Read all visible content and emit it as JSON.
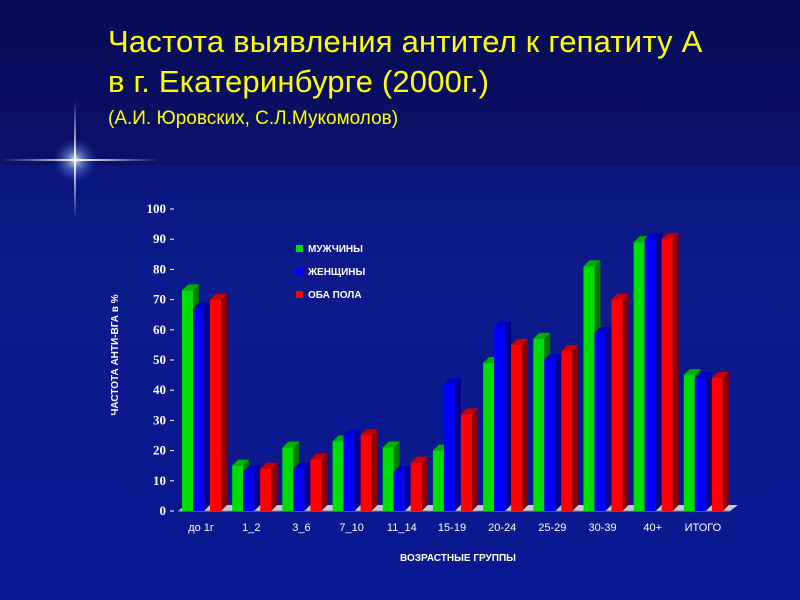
{
  "slide": {
    "title_line1": "Частота выявления антител к гепатиту А",
    "title_line2": "в г. Екатеринбурге (2000г.)",
    "subtitle": "(А.И. Юровских, С.Л.Мукомолов)"
  },
  "colors": {
    "title": "#ffff00",
    "male": "#00dd00",
    "female": "#0000ff",
    "both": "#ff0000"
  },
  "chart_data": {
    "type": "bar",
    "title": "",
    "xlabel": "ВОЗРАСТНЫЕ ГРУППЫ",
    "ylabel": "ЧАСТОТА АНТИ-ВГА в %",
    "ylim": [
      0,
      100
    ],
    "yticks": [
      0,
      10,
      20,
      30,
      40,
      50,
      60,
      70,
      80,
      90,
      100
    ],
    "grid": false,
    "legend_position": "top-left",
    "categories": [
      "до 1г",
      "1_2",
      "3_6",
      "7_10",
      "11_14",
      "15-19",
      "20-24",
      "25-29",
      "30-39",
      "40+",
      "ИТОГО"
    ],
    "series": [
      {
        "name": "МУЖЧИНЫ",
        "color": "#00dd00",
        "values": [
          73,
          15,
          21,
          23,
          21,
          20,
          49,
          57,
          81,
          89,
          45
        ]
      },
      {
        "name": "ЖЕНЩИНЫ",
        "color": "#0000ff",
        "values": [
          67,
          13,
          14,
          25,
          13,
          42,
          61,
          50,
          59,
          90,
          44
        ]
      },
      {
        "name": "ОБА ПОЛА",
        "color": "#ff0000",
        "values": [
          70,
          14,
          17,
          25,
          16,
          32,
          55,
          53,
          70,
          90,
          44
        ]
      }
    ]
  }
}
